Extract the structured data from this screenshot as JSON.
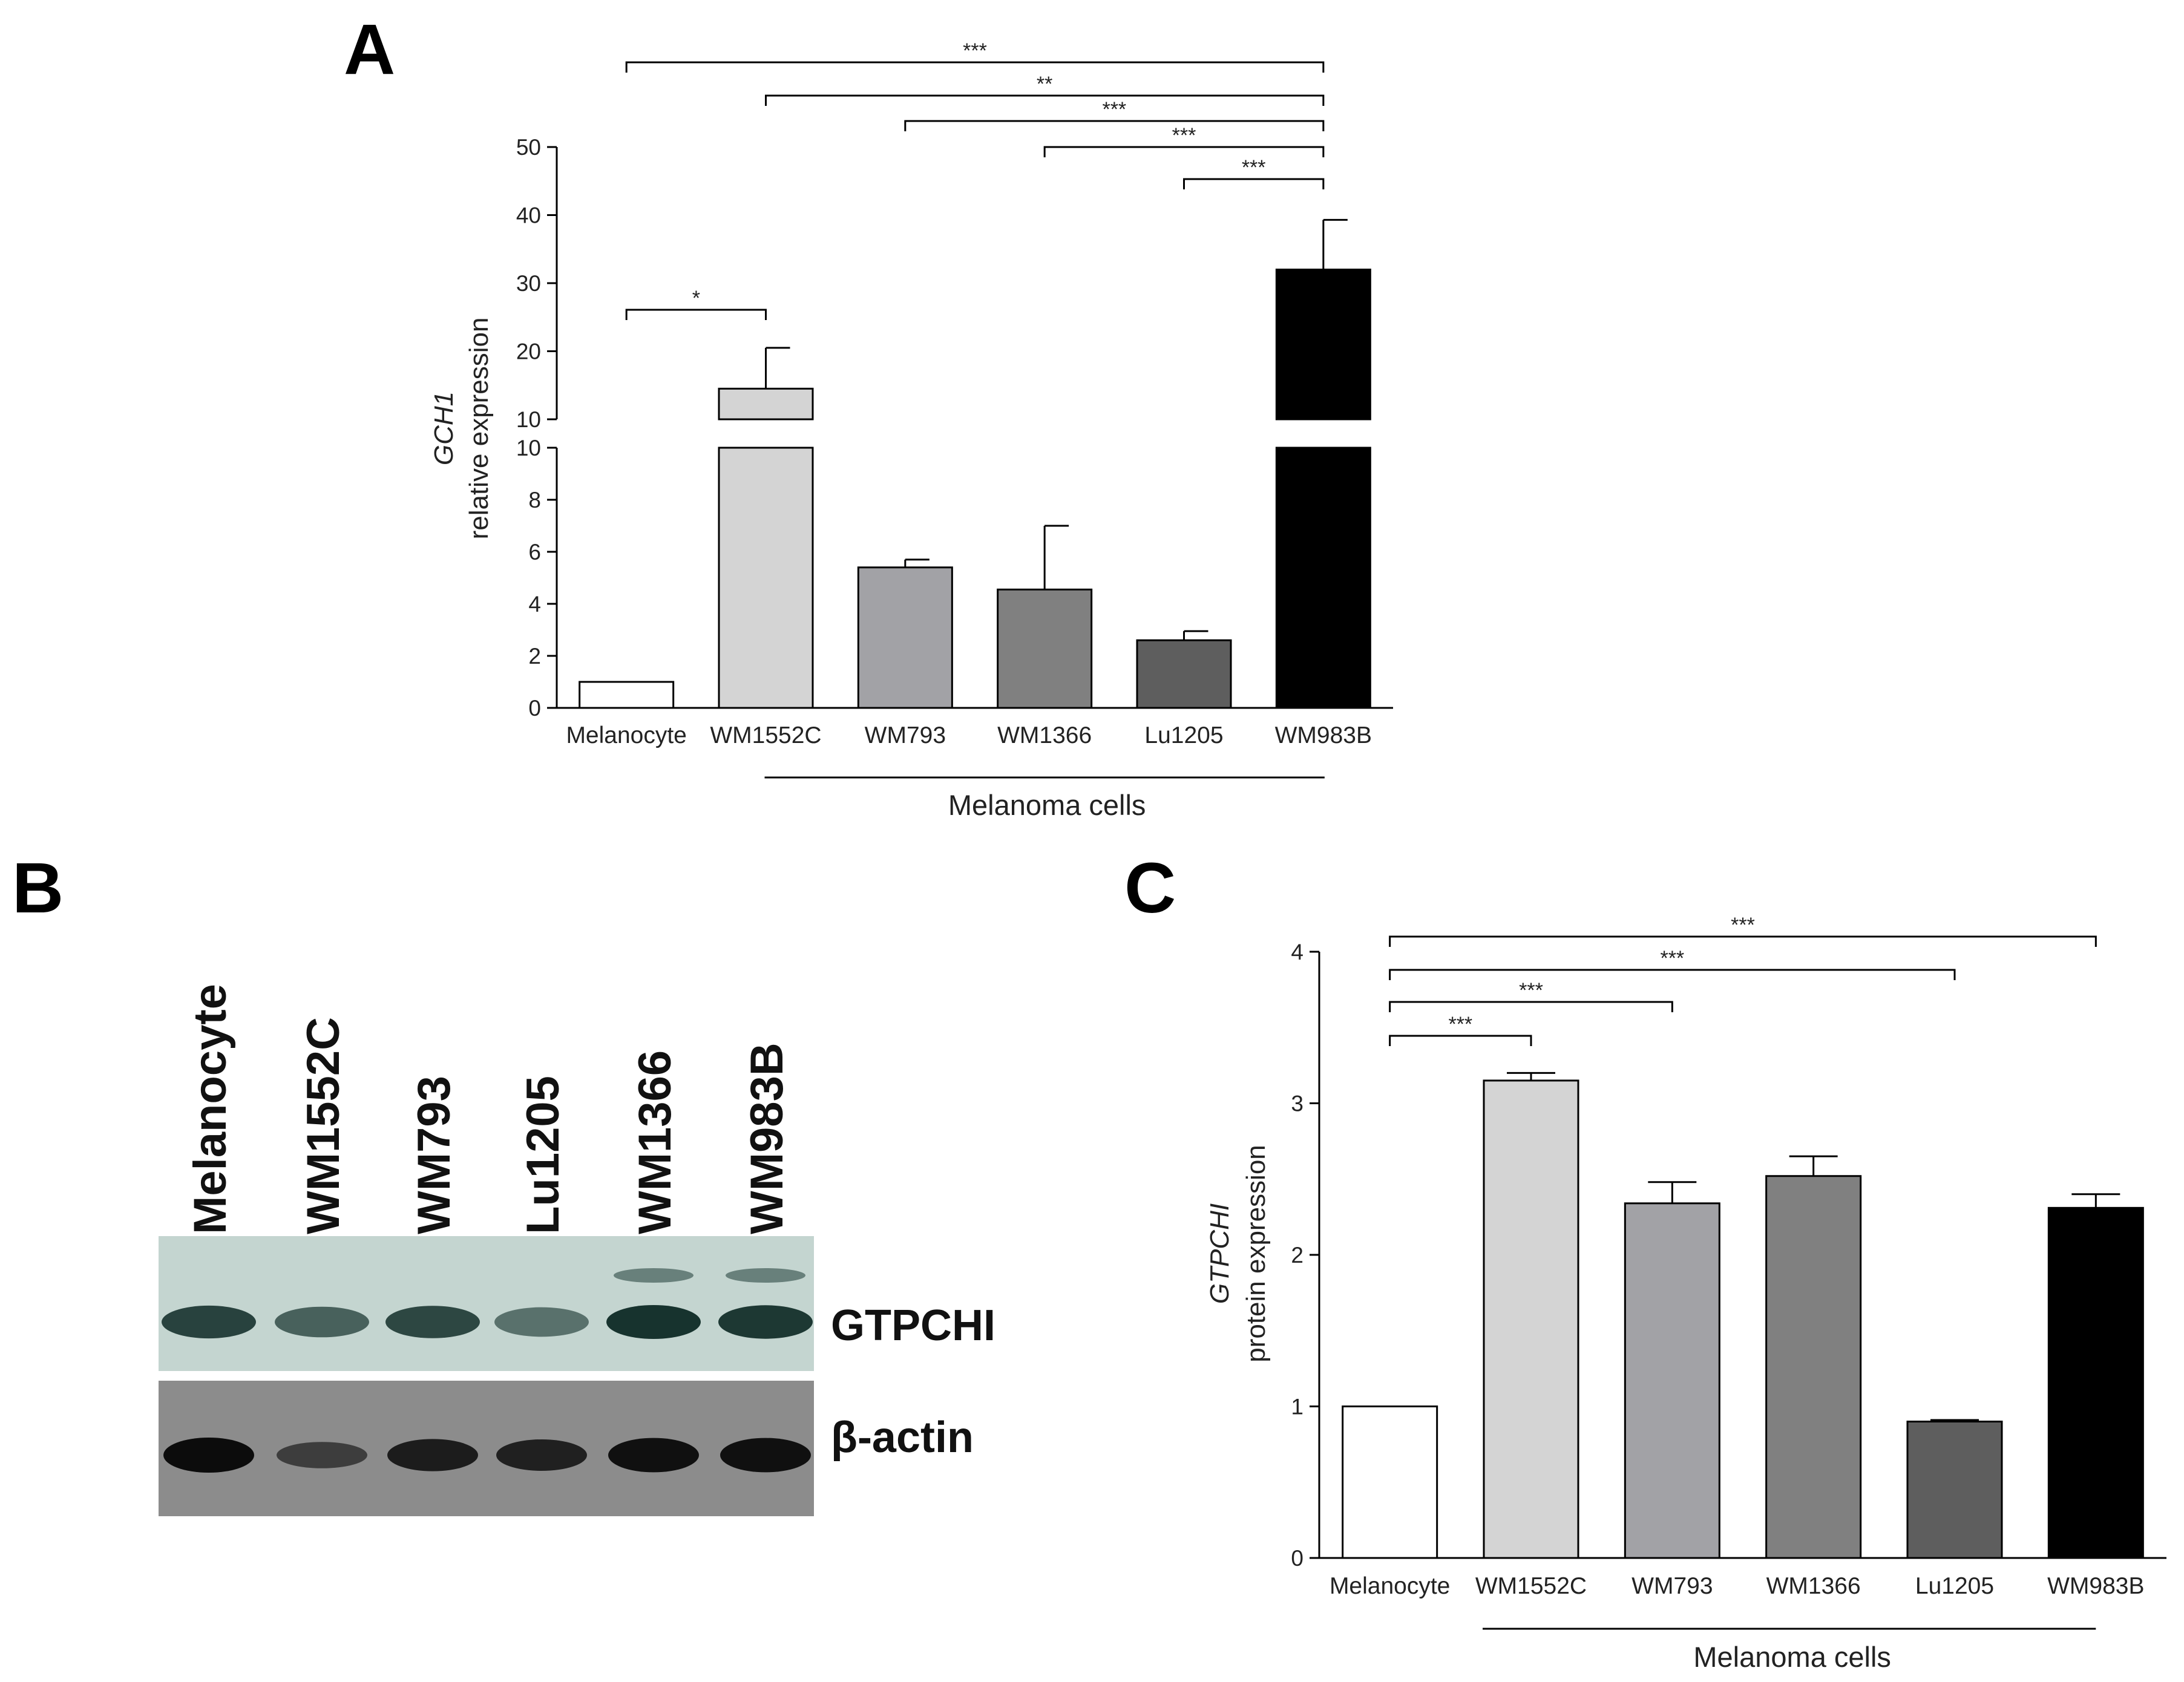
{
  "panel_letters": {
    "a": "A",
    "b": "B",
    "c": "C"
  },
  "colors": {
    "melanocyte": "#ffffff",
    "WM1552C": "#d4d4d4",
    "WM793": "#a2a2a6",
    "WM1366": "#808080",
    "Lu1205": "#5e5e5e",
    "WM983B": "#000000",
    "outline": "#000000",
    "blot_gtpchi_bg": "#c4d5d0",
    "blot_actin_bg": "#8c8c8c"
  },
  "chart_data": [
    {
      "panel": "A",
      "type": "bar",
      "categories": [
        "Melanocyte",
        "WM1552C",
        "WM793",
        "WM1366",
        "Lu1205",
        "WM983B"
      ],
      "values": [
        1.0,
        14.5,
        5.4,
        4.55,
        2.6,
        32.0
      ],
      "errors": [
        0.0,
        6.0,
        0.3,
        2.45,
        0.35,
        7.3
      ],
      "ylabel_italic": "GCH1",
      "ylabel": "relative expression",
      "y_axis_break": true,
      "ylim_lower": [
        0,
        10
      ],
      "ylim_upper": [
        10,
        50
      ],
      "yticks_lower": [
        "0",
        "2",
        "4",
        "6",
        "8",
        "10"
      ],
      "yticks_upper": [
        "10",
        "20",
        "30",
        "40",
        "50"
      ],
      "group_label": "Melanoma cells",
      "significance": [
        {
          "from": "Melanocyte",
          "to": "WM983B",
          "label": "***"
        },
        {
          "from": "WM1552C",
          "to": "WM983B",
          "label": "**"
        },
        {
          "from": "WM793",
          "to": "WM983B",
          "label": "***"
        },
        {
          "from": "WM1366",
          "to": "WM983B",
          "label": "***"
        },
        {
          "from": "Lu1205",
          "to": "WM983B",
          "label": "***"
        },
        {
          "from": "Melanocyte",
          "to": "WM1552C",
          "label": "*"
        }
      ]
    },
    {
      "panel": "C",
      "type": "bar",
      "categories": [
        "Melanocyte",
        "WM1552C",
        "WM793",
        "WM1366",
        "Lu1205",
        "WM983B"
      ],
      "values": [
        1.0,
        3.15,
        2.34,
        2.52,
        0.9,
        2.31
      ],
      "errors": [
        0.0,
        0.05,
        0.14,
        0.13,
        0.01,
        0.09
      ],
      "ylabel_italic": "GTPCHI",
      "ylabel": "protein expression",
      "ylim": [
        0,
        4
      ],
      "yticks": [
        "0",
        "1",
        "2",
        "3",
        "4"
      ],
      "group_label": "Melanoma cells",
      "significance": [
        {
          "from": "Melanocyte",
          "to": "WM983B",
          "label": "***"
        },
        {
          "from": "Melanocyte",
          "to": "Lu1205",
          "label": "***"
        },
        {
          "from": "Melanocyte",
          "to": "WM793",
          "label": "***"
        },
        {
          "from": "Melanocyte",
          "to": "WM1552C",
          "label": "***"
        }
      ]
    }
  ],
  "western_blot": {
    "lanes": [
      "Melanocyte",
      "WM1552C",
      "WM793",
      "Lu1205",
      "WM1366",
      "WM983B"
    ],
    "proteins": [
      "GTPCHI",
      "β-actin"
    ],
    "gtpchi_intensity": [
      0.85,
      0.55,
      0.8,
      0.4,
      1.0,
      0.95
    ],
    "actin_intensity": [
      1.0,
      0.4,
      0.8,
      0.75,
      0.95,
      0.95
    ]
  }
}
